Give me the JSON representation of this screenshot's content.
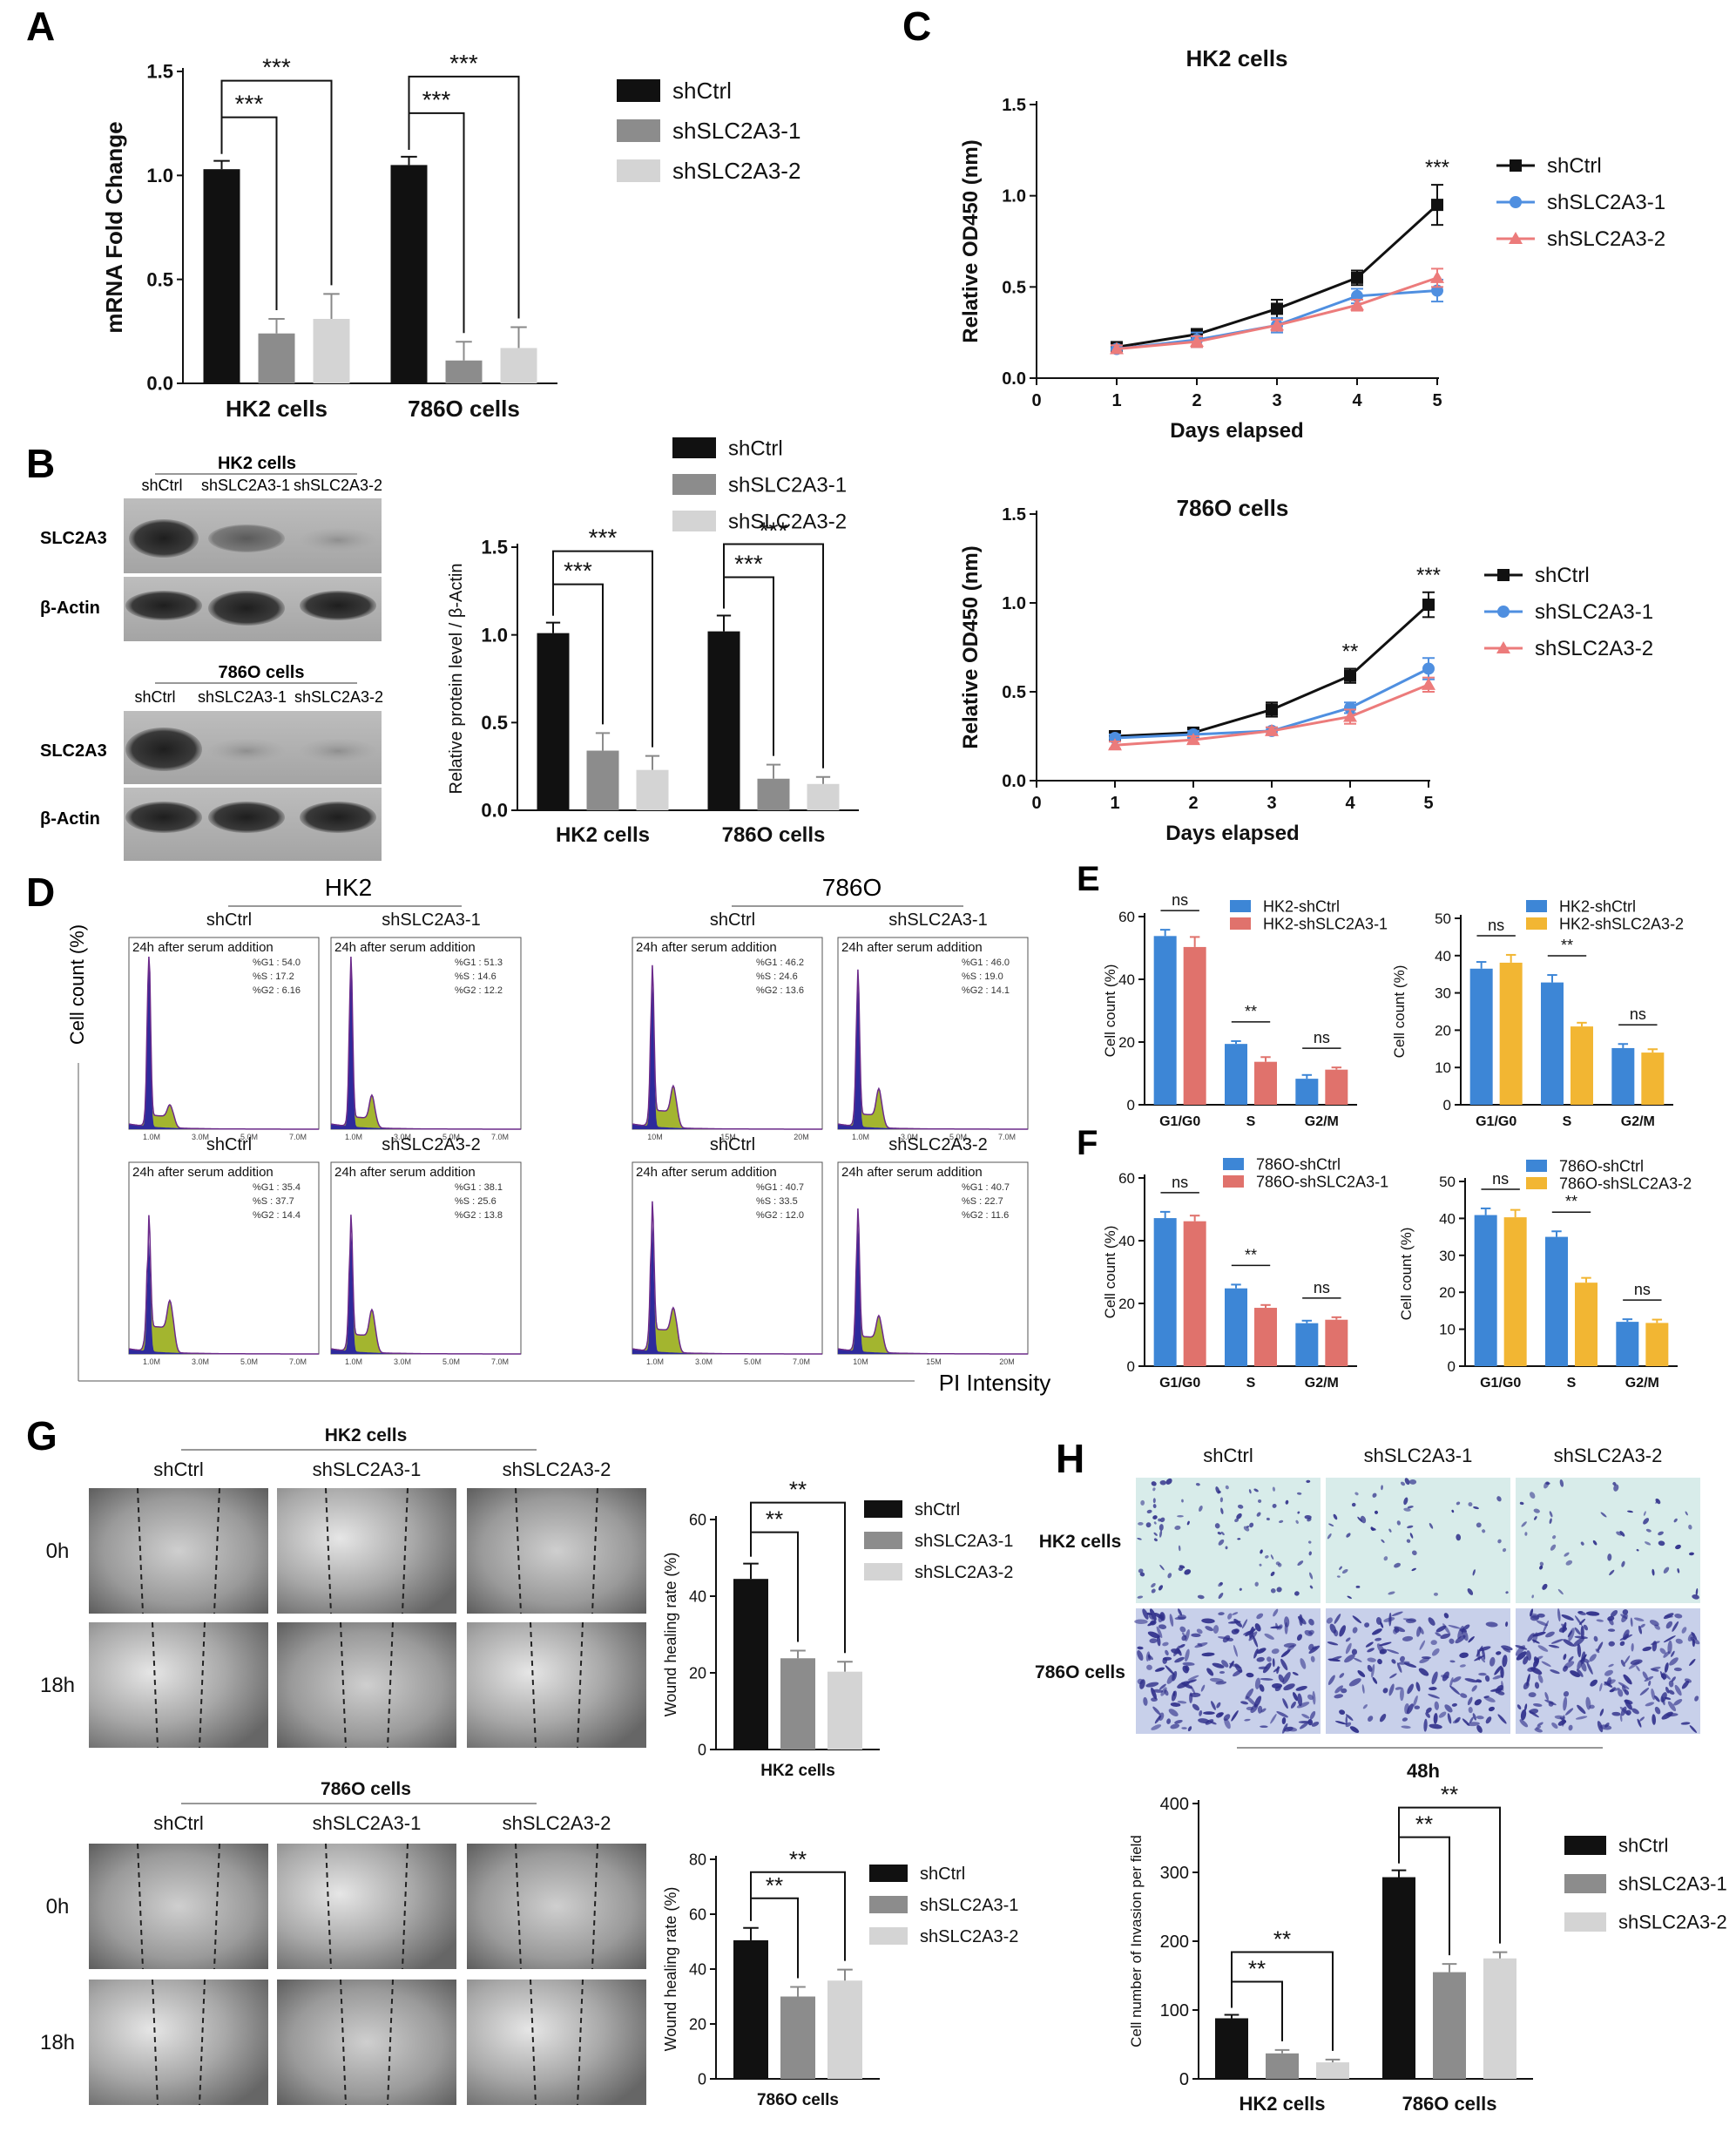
{
  "panel_letters": {
    "a": "A",
    "b": "B",
    "c": "C",
    "d": "D",
    "e": "E",
    "f": "F",
    "g": "G",
    "h": "H"
  },
  "colors": {
    "black": "#111111",
    "dark_grey": "#8c8c8c",
    "light_grey": "#d4d4d4",
    "blue": "#3d86d6",
    "salmon": "#e0726c",
    "yellow": "#f2b633",
    "line_blue": "#4f8fe0",
    "line_pink": "#ec7b7b",
    "hist_blue": "#2e2a9c",
    "hist_green": "#a3b52f"
  },
  "chart_data": [
    {
      "id": "A",
      "type": "bar",
      "categories": [
        "HK2 cells",
        "786O cells"
      ],
      "series": [
        {
          "name": "shCtrl",
          "values": [
            1.03,
            1.05
          ],
          "errors": [
            0.04,
            0.04
          ]
        },
        {
          "name": "shSLC2A3-1",
          "values": [
            0.24,
            0.11
          ],
          "errors": [
            0.07,
            0.09
          ]
        },
        {
          "name": "shSLC2A3-2",
          "values": [
            0.31,
            0.17
          ],
          "errors": [
            0.12,
            0.1
          ]
        }
      ],
      "ylabel": "mRNA Fold Change",
      "ylim": [
        0,
        1.5
      ],
      "yticks": [
        "0.0",
        "0.5",
        "1.0",
        "1.5"
      ],
      "yticks_val": [
        0,
        0.5,
        1.0,
        1.5
      ],
      "significance": [
        {
          "group": 0,
          "from": 0,
          "to": 1,
          "label": "***"
        },
        {
          "group": 0,
          "from": 0,
          "to": 2,
          "label": "***"
        },
        {
          "group": 1,
          "from": 0,
          "to": 1,
          "label": "***"
        },
        {
          "group": 1,
          "from": 0,
          "to": 2,
          "label": "***"
        }
      ],
      "legend": [
        "shCtrl",
        "shSLC2A3-1",
        "shSLC2A3-2"
      ]
    },
    {
      "id": "B",
      "type": "bar",
      "categories": [
        "HK2 cells",
        "786O cells"
      ],
      "series": [
        {
          "name": "shCtrl",
          "values": [
            1.01,
            1.02
          ],
          "errors": [
            0.06,
            0.09
          ]
        },
        {
          "name": "shSLC2A3-1",
          "values": [
            0.34,
            0.18
          ],
          "errors": [
            0.1,
            0.08
          ]
        },
        {
          "name": "shSLC2A3-2",
          "values": [
            0.23,
            0.15
          ],
          "errors": [
            0.08,
            0.04
          ]
        }
      ],
      "ylabel": "Relative protein level / β-Actin",
      "ylim": [
        0,
        1.5
      ],
      "yticks": [
        "0.0",
        "0.5",
        "1.0",
        "1.5"
      ],
      "yticks_val": [
        0,
        0.5,
        1.0,
        1.5
      ],
      "significance": [
        {
          "group": 0,
          "from": 0,
          "to": 1,
          "label": "***"
        },
        {
          "group": 0,
          "from": 0,
          "to": 2,
          "label": "***"
        },
        {
          "group": 1,
          "from": 0,
          "to": 1,
          "label": "***"
        },
        {
          "group": 1,
          "from": 0,
          "to": 2,
          "label": "***"
        }
      ],
      "legend": [
        "shCtrl",
        "shSLC2A3-1",
        "shSLC2A3-2"
      ]
    },
    {
      "id": "C1",
      "type": "line",
      "title": "HK2 cells",
      "x": [
        1,
        2,
        3,
        4,
        5
      ],
      "series": [
        {
          "name": "shCtrl",
          "values": [
            0.17,
            0.24,
            0.38,
            0.55,
            0.95
          ],
          "errors": [
            0.02,
            0.03,
            0.05,
            0.04,
            0.11
          ]
        },
        {
          "name": "shSLC2A3-1",
          "values": [
            0.16,
            0.21,
            0.29,
            0.45,
            0.48
          ],
          "errors": [
            0.02,
            0.04,
            0.04,
            0.04,
            0.06
          ]
        },
        {
          "name": "shSLC2A3-2",
          "values": [
            0.16,
            0.2,
            0.29,
            0.4,
            0.55
          ],
          "errors": [
            0.02,
            0.03,
            0.03,
            0.03,
            0.05
          ]
        }
      ],
      "xlabel": "Days elapsed",
      "ylabel": "Relative OD450  (nm)",
      "xlim": [
        0,
        5
      ],
      "ylim": [
        0,
        1.5
      ],
      "xticks": [
        "0",
        "1",
        "2",
        "3",
        "4",
        "5"
      ],
      "yticks": [
        "0.0",
        "0.5",
        "1.0",
        "1.5"
      ],
      "annotations": [
        {
          "x": 5,
          "label": "***"
        }
      ],
      "legend": [
        "shCtrl",
        "shSLC2A3-1",
        "shSLC2A3-2"
      ]
    },
    {
      "id": "C2",
      "type": "line",
      "title": "786O cells",
      "x": [
        1,
        2,
        3,
        4,
        5
      ],
      "series": [
        {
          "name": "shCtrl",
          "values": [
            0.25,
            0.27,
            0.4,
            0.59,
            0.99
          ],
          "errors": [
            0.02,
            0.02,
            0.04,
            0.04,
            0.07
          ]
        },
        {
          "name": "shSLC2A3-1",
          "values": [
            0.24,
            0.26,
            0.28,
            0.41,
            0.63
          ],
          "errors": [
            0.02,
            0.02,
            0.02,
            0.03,
            0.06
          ]
        },
        {
          "name": "shSLC2A3-2",
          "values": [
            0.2,
            0.23,
            0.28,
            0.36,
            0.54
          ],
          "errors": [
            0.02,
            0.02,
            0.02,
            0.04,
            0.04
          ]
        }
      ],
      "xlabel": "Days elapsed",
      "ylabel": "Relative OD450  (nm)",
      "xlim": [
        0,
        5
      ],
      "ylim": [
        0,
        1.5
      ],
      "xticks": [
        "0",
        "1",
        "2",
        "3",
        "4",
        "5"
      ],
      "yticks": [
        "0.0",
        "0.5",
        "1.0",
        "1.5"
      ],
      "annotations": [
        {
          "x": 4,
          "label": "**"
        },
        {
          "x": 5,
          "label": "***"
        }
      ],
      "legend": [
        "shCtrl",
        "shSLC2A3-1",
        "shSLC2A3-2"
      ]
    },
    {
      "id": "E1",
      "type": "bar",
      "categories": [
        "G1/G0",
        "S",
        "G2/M"
      ],
      "series": [
        {
          "name": "HK2-shCtrl",
          "values": [
            53.8,
            19.4,
            8.3
          ],
          "errors": [
            2.0,
            0.9,
            1.2
          ]
        },
        {
          "name": "HK2-shSLC2A3-1",
          "values": [
            50.3,
            13.7,
            11.2
          ],
          "errors": [
            3.2,
            1.5,
            0.7
          ]
        }
      ],
      "ylabel": "Cell count (%)",
      "ylim": [
        0,
        60
      ],
      "yticks": [
        "0",
        "20",
        "40",
        "60"
      ],
      "yticks_val": [
        0,
        20,
        40,
        60
      ],
      "sig_labels": [
        "ns",
        "**",
        "ns"
      ],
      "legend": [
        "HK2-shCtrl",
        "HK2-shSLC2A3-1"
      ]
    },
    {
      "id": "E2",
      "type": "bar",
      "categories": [
        "G1/G0",
        "S",
        "G2/M"
      ],
      "series": [
        {
          "name": "HK2-shCtrl",
          "values": [
            36.5,
            32.8,
            15.2
          ],
          "errors": [
            1.8,
            2.0,
            1.1
          ]
        },
        {
          "name": "HK2-shSLC2A3-2",
          "values": [
            38.1,
            21.0,
            14.0
          ],
          "errors": [
            2.1,
            1.0,
            0.9
          ]
        }
      ],
      "ylabel": "Cell count (%)",
      "ylim": [
        0,
        50
      ],
      "yticks": [
        "0",
        "10",
        "20",
        "30",
        "40",
        "50"
      ],
      "yticks_val": [
        0,
        10,
        20,
        30,
        40,
        50
      ],
      "sig_labels": [
        "ns",
        "**",
        "ns"
      ],
      "legend": [
        "HK2-shCtrl",
        "HK2-shSLC2A3-2"
      ]
    },
    {
      "id": "F1",
      "type": "bar",
      "categories": [
        "G1/G0",
        "S",
        "G2/M"
      ],
      "series": [
        {
          "name": "786O-shCtrl",
          "values": [
            47.2,
            24.8,
            13.7
          ],
          "errors": [
            2.0,
            1.2,
            0.8
          ]
        },
        {
          "name": "786O-shSLC2A3-1",
          "values": [
            46.2,
            18.6,
            14.8
          ],
          "errors": [
            1.8,
            0.9,
            0.8
          ]
        }
      ],
      "ylabel": "Cell count (%)",
      "ylim": [
        0,
        60
      ],
      "yticks": [
        "0",
        "20",
        "40",
        "60"
      ],
      "yticks_val": [
        0,
        20,
        40,
        60
      ],
      "sig_labels": [
        "ns",
        "**",
        "ns"
      ],
      "legend": [
        "786O-shCtrl",
        "786O-shSLC2A3-1"
      ]
    },
    {
      "id": "F2",
      "type": "bar",
      "categories": [
        "G1/G0",
        "S",
        "G2/M"
      ],
      "series": [
        {
          "name": "786O-shCtrl",
          "values": [
            40.9,
            35.0,
            12.0
          ],
          "errors": [
            1.8,
            1.5,
            0.7
          ]
        },
        {
          "name": "786O-shSLC2A3-2",
          "values": [
            40.3,
            22.6,
            11.7
          ],
          "errors": [
            2.0,
            1.3,
            0.9
          ]
        }
      ],
      "ylabel": "Cell count (%)",
      "ylim": [
        0,
        50
      ],
      "yticks": [
        "0",
        "10",
        "20",
        "30",
        "40",
        "50"
      ],
      "yticks_val": [
        0,
        10,
        20,
        30,
        40,
        50
      ],
      "sig_labels": [
        "ns",
        "**",
        "ns"
      ],
      "legend": [
        "786O-shCtrl",
        "786O-shSLC2A3-2"
      ]
    },
    {
      "id": "G1",
      "type": "bar",
      "categories": [
        "HK2 cells"
      ],
      "series": [
        {
          "name": "shCtrl",
          "values": [
            44.5
          ],
          "errors": [
            4.0
          ]
        },
        {
          "name": "shSLC2A3-1",
          "values": [
            23.8
          ],
          "errors": [
            2.0
          ]
        },
        {
          "name": "shSLC2A3-2",
          "values": [
            20.3
          ],
          "errors": [
            2.6
          ]
        }
      ],
      "ylabel": "Wound healing rate   (%)",
      "ylim": [
        0,
        60
      ],
      "yticks": [
        "0",
        "20",
        "40",
        "60"
      ],
      "yticks_val": [
        0,
        20,
        40,
        60
      ],
      "significance": [
        {
          "group": 0,
          "from": 0,
          "to": 1,
          "label": "**"
        },
        {
          "group": 0,
          "from": 0,
          "to": 2,
          "label": "**"
        }
      ],
      "legend": [
        "shCtrl",
        "shSLC2A3-1",
        "shSLC2A3-2"
      ]
    },
    {
      "id": "G2",
      "type": "bar",
      "categories": [
        "786O cells"
      ],
      "series": [
        {
          "name": "shCtrl",
          "values": [
            50.5
          ],
          "errors": [
            4.5
          ]
        },
        {
          "name": "shSLC2A3-1",
          "values": [
            30.0
          ],
          "errors": [
            3.5
          ]
        },
        {
          "name": "shSLC2A3-2",
          "values": [
            35.8
          ],
          "errors": [
            4.0
          ]
        }
      ],
      "ylabel": "Wound healing rate   (%)",
      "ylim": [
        0,
        80
      ],
      "yticks": [
        "0",
        "20",
        "40",
        "60",
        "80"
      ],
      "yticks_val": [
        0,
        20,
        40,
        60,
        80
      ],
      "significance": [
        {
          "group": 0,
          "from": 0,
          "to": 1,
          "label": "**"
        },
        {
          "group": 0,
          "from": 0,
          "to": 2,
          "label": "**"
        }
      ],
      "legend": [
        "shCtrl",
        "shSLC2A3-1",
        "shSLC2A3-2"
      ]
    },
    {
      "id": "H",
      "type": "bar",
      "categories": [
        "HK2 cells",
        "786O cells"
      ],
      "series": [
        {
          "name": "shCtrl",
          "values": [
            88,
            293
          ],
          "errors": [
            5,
            10
          ]
        },
        {
          "name": "shSLC2A3-1",
          "values": [
            37,
            155
          ],
          "errors": [
            5,
            12
          ]
        },
        {
          "name": "shSLC2A3-2",
          "values": [
            24,
            175
          ],
          "errors": [
            4,
            9
          ]
        }
      ],
      "ylabel": "Cell number of Invasion per field",
      "ylim": [
        0,
        400
      ],
      "yticks": [
        "0",
        "100",
        "200",
        "300",
        "400"
      ],
      "yticks_val": [
        0,
        100,
        200,
        300,
        400
      ],
      "significance": [
        {
          "group": 0,
          "from": 0,
          "to": 1,
          "label": "**"
        },
        {
          "group": 0,
          "from": 0,
          "to": 2,
          "label": "**"
        },
        {
          "group": 1,
          "from": 0,
          "to": 1,
          "label": "**"
        },
        {
          "group": 1,
          "from": 0,
          "to": 2,
          "label": "**"
        }
      ],
      "legend": [
        "shCtrl",
        "shSLC2A3-1",
        "shSLC2A3-2"
      ]
    }
  ],
  "blot": {
    "hk2_title": "HK2 cells",
    "o786_title": "786O cells",
    "lanes": [
      "shCtrl",
      "shSLC2A3-1",
      "shSLC2A3-2"
    ],
    "rows": [
      "SLC2A3",
      "β-Actin"
    ]
  },
  "flow": {
    "group_hk2": "HK2",
    "group_786o": "786O",
    "y_axis": "Cell count (%)",
    "x_axis": "PI Intensity",
    "inner_title": "24h after serum addition",
    "panels": [
      {
        "label": "shCtrl",
        "stats": [
          "%G1  : 54.0",
          "%S   : 17.2",
          "%G2  : 6.16"
        ],
        "ticks": [
          "1.0M",
          "3.0M",
          "5.0M",
          "7.0M"
        ]
      },
      {
        "label": "shSLC2A3-1",
        "stats": [
          "%G1  : 51.3",
          "%S   : 14.6",
          "%G2  : 12.2"
        ],
        "ticks": [
          "1.0M",
          "3.0M",
          "5.0M",
          "7.0M"
        ]
      },
      {
        "label": "shCtrl",
        "stats": [
          "%G1  : 46.2",
          "%S   : 24.6",
          "%G2  : 13.6"
        ],
        "ticks": [
          "10M",
          "15M",
          "20M"
        ]
      },
      {
        "label": "shSLC2A3-1",
        "stats": [
          "%G1  : 46.0",
          "%S   : 19.0",
          "%G2  : 14.1"
        ],
        "ticks": [
          "1.0M",
          "3.0M",
          "5.0M",
          "7.0M"
        ]
      },
      {
        "label": "shCtrl",
        "stats": [
          "%G1  : 35.4",
          "%S   : 37.7",
          "%G2  : 14.4"
        ],
        "ticks": [
          "1.0M",
          "3.0M",
          "5.0M",
          "7.0M"
        ]
      },
      {
        "label": "shSLC2A3-2",
        "stats": [
          "%G1  : 38.1",
          "%S   : 25.6",
          "%G2  : 13.8"
        ],
        "ticks": [
          "1.0M",
          "3.0M",
          "5.0M",
          "7.0M"
        ]
      },
      {
        "label": "shCtrl",
        "stats": [
          "%G1  : 40.7",
          "%S   : 33.5",
          "%G2  : 12.0"
        ],
        "ticks": [
          "1.0M",
          "3.0M",
          "5.0M",
          "7.0M"
        ]
      },
      {
        "label": "shSLC2A3-2",
        "stats": [
          "%G1  : 40.7",
          "%S   : 22.7",
          "%G2  : 11.6"
        ],
        "ticks": [
          "10M",
          "15M",
          "20M"
        ]
      }
    ]
  },
  "wound": {
    "hk2_title": "HK2 cells",
    "o786_title": "786O cells",
    "cols": [
      "shCtrl",
      "shSLC2A3-1",
      "shSLC2A3-2"
    ],
    "rows": [
      "0h",
      "18h"
    ]
  },
  "invasion": {
    "cols": [
      "shCtrl",
      "shSLC2A3-1",
      "shSLC2A3-2"
    ],
    "rows": [
      "HK2 cells",
      "786O cells"
    ],
    "time": "48h"
  }
}
